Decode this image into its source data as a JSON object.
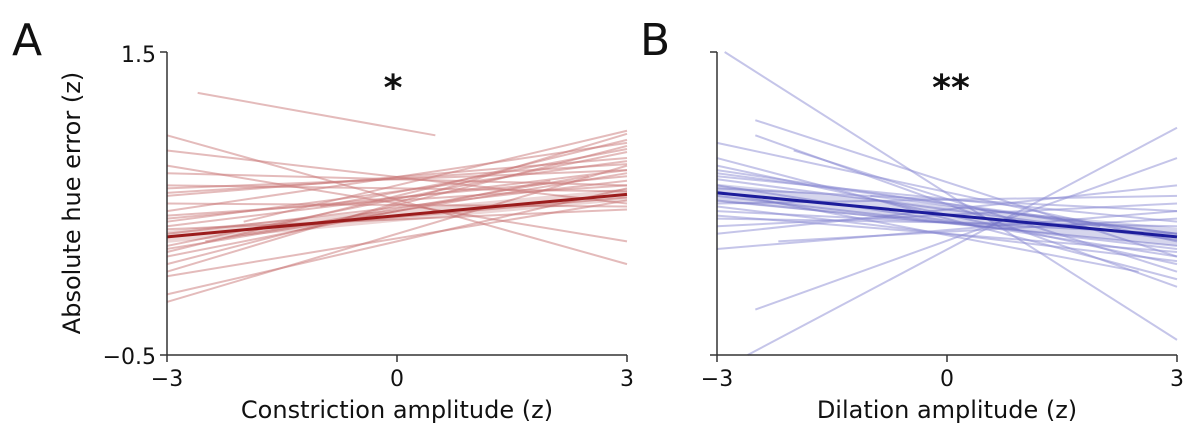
{
  "chart_data": [
    {
      "type": "line",
      "panel_label": "A",
      "significance": "*",
      "xlabel": "Constriction amplitude (z)",
      "ylabel": "Absolute hue error (z)",
      "xlim": [
        -3,
        3
      ],
      "ylim": [
        -0.5,
        1.5
      ],
      "xticks": [
        "−3",
        "0",
        "3"
      ],
      "yticks": [
        "1.5",
        "−0.5"
      ],
      "color": "#9b1c1c",
      "individual_color": "#c97878",
      "mean_line": {
        "x": [
          -3,
          3
        ],
        "y": [
          0.28,
          0.56
        ]
      },
      "ci_halfwidth": 0.04,
      "subject_lines": [
        {
          "x": [
            -2.6,
            0.5
          ],
          "y": [
            1.23,
            0.95
          ]
        },
        {
          "x": [
            -3,
            3
          ],
          "y": [
            0.57,
            0.76
          ]
        },
        {
          "x": [
            -3,
            3
          ],
          "y": [
            0.38,
            0.78
          ]
        },
        {
          "x": [
            -3,
            3
          ],
          "y": [
            0.22,
            0.84
          ]
        },
        {
          "x": [
            -3,
            3
          ],
          "y": [
            0.18,
            0.92
          ]
        },
        {
          "x": [
            -3,
            3
          ],
          "y": [
            0.42,
            0.62
          ]
        },
        {
          "x": [
            -3,
            3
          ],
          "y": [
            0.35,
            0.72
          ]
        },
        {
          "x": [
            -3,
            3
          ],
          "y": [
            0.3,
            0.65
          ]
        },
        {
          "x": [
            -3,
            3
          ],
          "y": [
            0.62,
            0.58
          ]
        },
        {
          "x": [
            -3,
            3
          ],
          "y": [
            0.5,
            0.48
          ]
        },
        {
          "x": [
            -3,
            3
          ],
          "y": [
            0.05,
            0.96
          ]
        },
        {
          "x": [
            -3,
            3
          ],
          "y": [
            -0.15,
            0.75
          ]
        },
        {
          "x": [
            -3,
            3
          ],
          "y": [
            -0.1,
            0.6
          ]
        },
        {
          "x": [
            -3,
            3
          ],
          "y": [
            0.85,
            0.5
          ]
        },
        {
          "x": [
            -3,
            3
          ],
          "y": [
            0.75,
            0.25
          ]
        },
        {
          "x": [
            -3,
            3
          ],
          "y": [
            0.95,
            0.1
          ]
        },
        {
          "x": [
            -3,
            3
          ],
          "y": [
            0.4,
            0.68
          ]
        },
        {
          "x": [
            -3,
            3
          ],
          "y": [
            0.55,
            0.8
          ]
        },
        {
          "x": [
            -3,
            3
          ],
          "y": [
            0.7,
            0.62
          ]
        },
        {
          "x": [
            -3,
            3
          ],
          "y": [
            0.28,
            0.54
          ]
        },
        {
          "x": [
            -3,
            3
          ],
          "y": [
            0.1,
            0.88
          ]
        },
        {
          "x": [
            -3,
            3
          ],
          "y": [
            0.45,
            0.9
          ]
        },
        {
          "x": [
            -3,
            3
          ],
          "y": [
            0.33,
            0.46
          ]
        },
        {
          "x": [
            -3,
            3
          ],
          "y": [
            0.2,
            0.7
          ]
        },
        {
          "x": [
            -3,
            3
          ],
          "y": [
            0.6,
            0.72
          ]
        },
        {
          "x": [
            -3,
            2
          ],
          "y": [
            0.15,
            0.65
          ]
        },
        {
          "x": [
            -2,
            3
          ],
          "y": [
            0.38,
            0.98
          ]
        },
        {
          "x": [
            -1,
            3
          ],
          "y": [
            0.48,
            0.86
          ]
        },
        {
          "x": [
            -3,
            3
          ],
          "y": [
            0.02,
            0.52
          ]
        },
        {
          "x": [
            -2.5,
            2.5
          ],
          "y": [
            0.25,
            0.68
          ]
        }
      ]
    },
    {
      "type": "line",
      "panel_label": "B",
      "significance": "**",
      "xlabel": "Dilation amplitude (z)",
      "ylabel": "",
      "xlim": [
        -3,
        3
      ],
      "ylim": [
        -0.5,
        1.5
      ],
      "xticks": [
        "−3",
        "0",
        "3"
      ],
      "yticks": [],
      "color": "#1c1c9b",
      "individual_color": "#8c8cd4",
      "mean_line": {
        "x": [
          -3,
          3
        ],
        "y": [
          0.57,
          0.28
        ]
      },
      "ci_halfwidth": 0.06,
      "subject_lines": [
        {
          "x": [
            -2.9,
            3
          ],
          "y": [
            1.5,
            -0.4
          ]
        },
        {
          "x": [
            -2.6,
            3
          ],
          "y": [
            -0.5,
            1.0
          ]
        },
        {
          "x": [
            -2.5,
            3
          ],
          "y": [
            -0.2,
            0.8
          ]
        },
        {
          "x": [
            -3,
            3
          ],
          "y": [
            0.9,
            0.25
          ]
        },
        {
          "x": [
            -2.5,
            3
          ],
          "y": [
            1.05,
            0.15
          ]
        },
        {
          "x": [
            -3,
            3
          ],
          "y": [
            0.68,
            0.38
          ]
        },
        {
          "x": [
            -3,
            3
          ],
          "y": [
            0.6,
            0.45
          ]
        },
        {
          "x": [
            -3,
            3
          ],
          "y": [
            0.55,
            0.2
          ]
        },
        {
          "x": [
            -3,
            3
          ],
          "y": [
            0.75,
            0.1
          ]
        },
        {
          "x": [
            -3,
            3
          ],
          "y": [
            0.5,
            0.55
          ]
        },
        {
          "x": [
            -3,
            3
          ],
          "y": [
            0.45,
            0.3
          ]
        },
        {
          "x": [
            -3,
            3
          ],
          "y": [
            0.4,
            0.35
          ]
        },
        {
          "x": [
            -3,
            3
          ],
          "y": [
            0.8,
            0.0
          ]
        },
        {
          "x": [
            -3,
            3
          ],
          "y": [
            0.35,
            0.5
          ]
        },
        {
          "x": [
            -3,
            3
          ],
          "y": [
            0.62,
            0.15
          ]
        },
        {
          "x": [
            -3,
            3
          ],
          "y": [
            0.7,
            0.3
          ]
        },
        {
          "x": [
            -3,
            3
          ],
          "y": [
            0.3,
            0.62
          ]
        },
        {
          "x": [
            -2,
            3
          ],
          "y": [
            0.85,
            0.05
          ]
        },
        {
          "x": [
            -2.2,
            3
          ],
          "y": [
            0.25,
            0.4
          ]
        },
        {
          "x": [
            -3,
            3
          ],
          "y": [
            0.52,
            0.22
          ]
        },
        {
          "x": [
            -3,
            3
          ],
          "y": [
            0.48,
            0.12
          ]
        },
        {
          "x": [
            -3,
            3
          ],
          "y": [
            0.66,
            0.26
          ]
        },
        {
          "x": [
            -3,
            2.5
          ],
          "y": [
            0.58,
            0.05
          ]
        },
        {
          "x": [
            -3,
            3
          ],
          "y": [
            0.2,
            0.45
          ]
        },
        {
          "x": [
            -2.5,
            3
          ],
          "y": [
            0.95,
            -0.05
          ]
        },
        {
          "x": [
            -3,
            3
          ],
          "y": [
            0.42,
            0.18
          ]
        },
        {
          "x": [
            -1,
            3
          ],
          "y": [
            0.55,
            0.3
          ]
        },
        {
          "x": [
            -3,
            2
          ],
          "y": [
            0.72,
            0.35
          ]
        }
      ]
    }
  ]
}
